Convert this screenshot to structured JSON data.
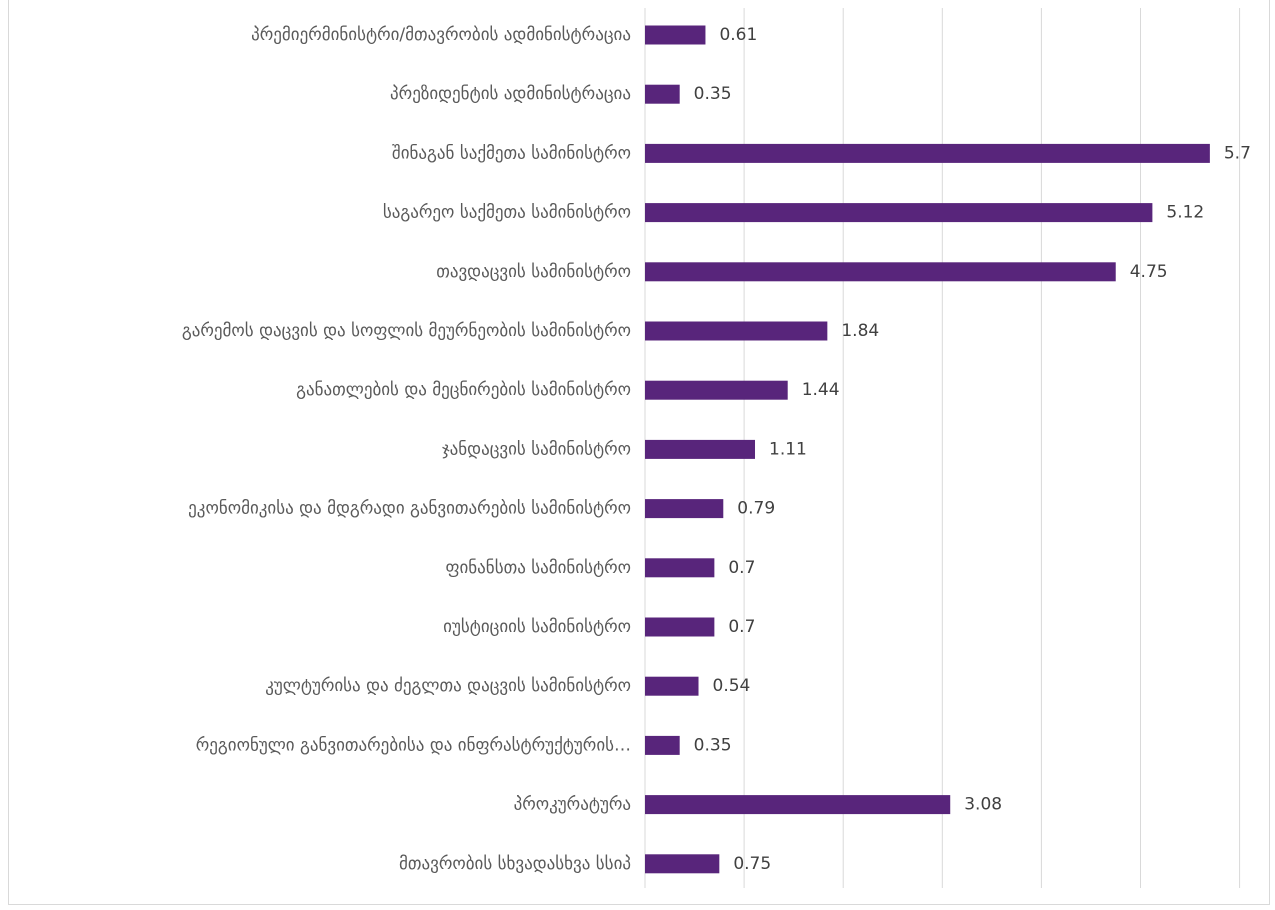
{
  "colors": {
    "bar": "#58257b",
    "grid": "#d9d9d9",
    "label_text": "#595959",
    "value_text": "#404040"
  },
  "chart_data": {
    "type": "bar",
    "orientation": "horizontal",
    "categories": [
      "პრემიერმინისტრი/მთავრობის ადმინისტრაცია",
      "პრეზიდენტის ადმინისტრაცია",
      "შინაგან საქმეთა სამინისტრო",
      "საგარეო საქმეთა სამინისტრო",
      "თავდაცვის სამინისტრო",
      "გარემოს დაცვის და სოფლის მეურნეობის სამინისტრო",
      "განათლების და მეცნირების სამინისტრო",
      "ჯანდაცვის სამინისტრო",
      "ეკონომიკისა და მდგრადი განვითარების სამინისტრო",
      "ფინანსთა სამინისტრო",
      "იუსტიციის სამინისტრო",
      "კულტურისა და ძეგლთა დაცვის სამინისტრო",
      "რეგიონული განვითარებისა და ინფრასტრუქტურის…",
      "პროკურატურა",
      "მთავრობის სხვადასხვა სსიპ"
    ],
    "values": [
      0.61,
      0.35,
      5.7,
      5.12,
      4.75,
      1.84,
      1.44,
      1.11,
      0.79,
      0.7,
      0.7,
      0.54,
      0.35,
      3.08,
      0.75
    ],
    "data_labels": [
      "0.61",
      "0.35",
      "5.7",
      "5.12",
      "4.75",
      "1.84",
      "1.44",
      "1.11",
      "0.79",
      "0.7",
      "0.7",
      "0.54",
      "0.35",
      "3.08",
      "0.75"
    ],
    "xlim": [
      0,
      6
    ],
    "gridlines": "vertical",
    "legend": "none"
  }
}
